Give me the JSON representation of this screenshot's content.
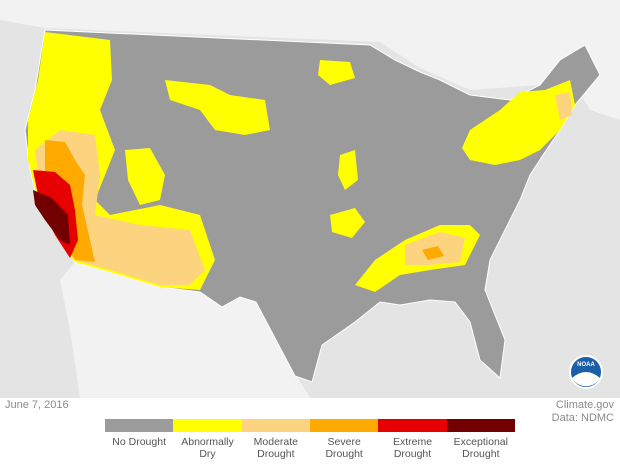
{
  "date": "June 7, 2016",
  "credit": "Climate.gov",
  "source": "Data: NDMC",
  "logo": "NOAA",
  "legend": [
    {
      "label": "No Drought",
      "color": "#9b9b9b"
    },
    {
      "label": "Abnormally Dry",
      "color": "#ffff00"
    },
    {
      "label": "Moderate Drought",
      "color": "#fcd37f"
    },
    {
      "label": "Severe Drought",
      "color": "#ffaa00"
    },
    {
      "label": "Extreme Drought",
      "color": "#e60000"
    },
    {
      "label": "Exceptional Drought",
      "color": "#730000"
    }
  ]
}
